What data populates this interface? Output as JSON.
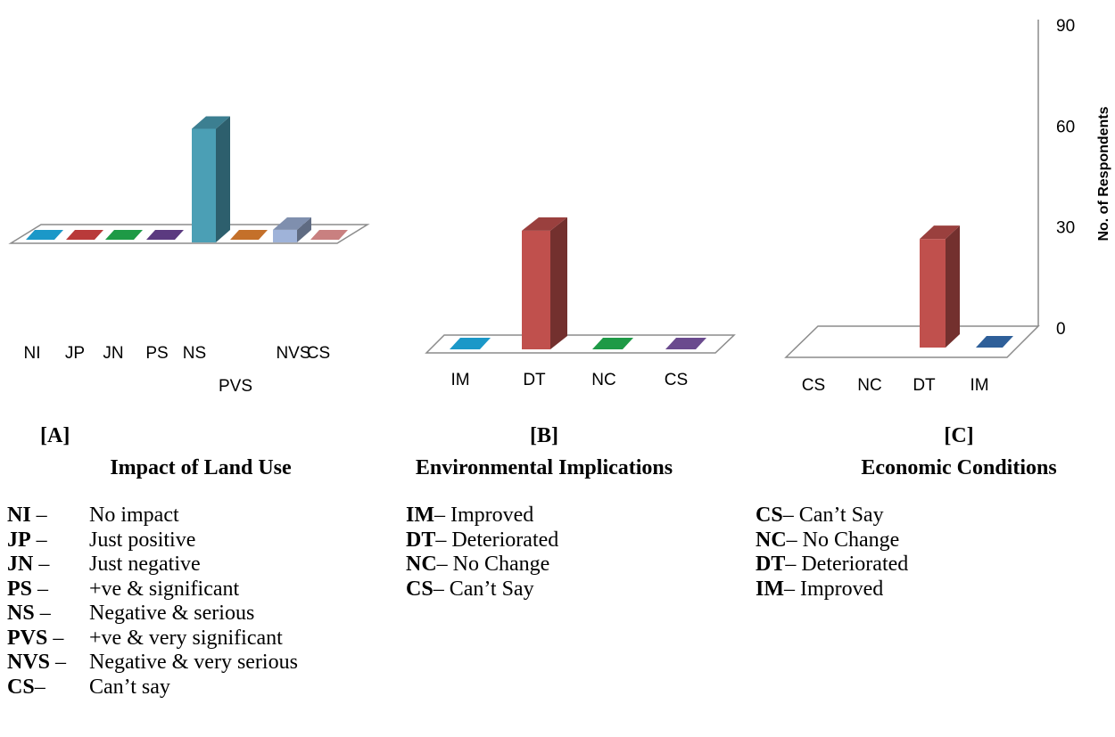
{
  "chart_data": [
    {
      "id": "A",
      "type": "bar",
      "panel_label": "[A]",
      "title": "Impact of Land Use",
      "categories": [
        "NI",
        "JP",
        "JN",
        "PS",
        "NS",
        "PVS",
        "NVS",
        "CS"
      ],
      "values": [
        0,
        0,
        0,
        0,
        45,
        0,
        5,
        0
      ],
      "colors": [
        "#1b98c8",
        "#b93a3a",
        "#1e9a46",
        "#5b3a80",
        "#4b9fb5",
        "#c4702a",
        "#9fb3d9",
        "#c98080"
      ],
      "legend": [
        {
          "abbr": "NI",
          "dash": " –",
          "text": "No impact"
        },
        {
          "abbr": "JP",
          "dash": " –",
          "text": "Just positive"
        },
        {
          "abbr": "JN",
          "dash": " –",
          "text": "Just negative"
        },
        {
          "abbr": "PS",
          "dash": " –",
          "text": "+ve & significant"
        },
        {
          "abbr": "NS",
          "dash": " –",
          "text": "Negative & serious"
        },
        {
          "abbr": "PVS",
          "dash": " –",
          "text": "+ve & very significant"
        },
        {
          "abbr": "NVS",
          "dash": " –",
          "text": "Negative & very serious"
        },
        {
          "abbr": "CS",
          "dash": "–",
          "text": "Can’t say"
        }
      ]
    },
    {
      "id": "B",
      "type": "bar",
      "panel_label": "[B]",
      "title": "Environmental Implications",
      "categories": [
        "IM",
        "DT",
        "NC",
        "CS"
      ],
      "values": [
        0,
        47,
        0,
        0
      ],
      "colors": [
        "#1b98c8",
        "#c0504d",
        "#1e9a46",
        "#6a4a8e"
      ],
      "legend": [
        {
          "abbr": "IM",
          "text": "Improved"
        },
        {
          "abbr": "DT",
          "text": "Deteriorated"
        },
        {
          "abbr": "NC",
          "text": "No Change"
        },
        {
          "abbr": "CS",
          "text": "Can’t Say"
        }
      ]
    },
    {
      "id": "C",
      "type": "bar",
      "panel_label": "[C]",
      "title": "Economic Conditions",
      "categories": [
        "CS",
        "NC",
        "DT",
        "IM"
      ],
      "values": [
        null,
        null,
        43,
        0
      ],
      "colors": [
        "#ffffff",
        "#ffffff",
        "#c0504d",
        "#2e5f99"
      ],
      "ylabel": "No. of Respondents",
      "yticks": [
        0,
        30,
        60,
        90
      ],
      "ylim": [
        0,
        90
      ],
      "legend": [
        {
          "abbr": "CS",
          "text": "Can’t Say"
        },
        {
          "abbr": "NC",
          "text": "No Change"
        },
        {
          "abbr": "DT",
          "text": "Deteriorated"
        },
        {
          "abbr": "IM",
          "text": "Improved"
        }
      ]
    }
  ]
}
